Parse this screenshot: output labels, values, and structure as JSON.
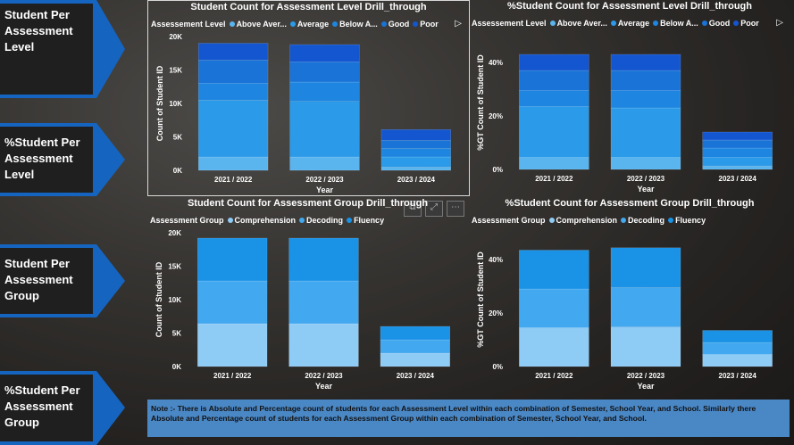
{
  "nav": [
    {
      "label": "Student Per\nAssessment\nLevel"
    },
    {
      "label": "%Student Per\nAssessment\nLevel"
    },
    {
      "label": "Student Per\nAssessment\nGroup"
    },
    {
      "label": "%Student Per\nAssessment\nGroup"
    }
  ],
  "colors": {
    "nav_bg": "#1f1f1f",
    "nav_arrow": "#1565c0",
    "above_average": "#5ab4ee",
    "average": "#2b9ae8",
    "below_average": "#1e86e0",
    "good": "#1a73d6",
    "poor": "#1456cf",
    "comprehension": "#8ecbf5",
    "decoding": "#42a8ef",
    "fluency": "#1a92e6",
    "note_bg": "#4a87c5"
  },
  "panels": {
    "p1": {
      "title": "Student Count for Assessment Level Drill_through",
      "legend_title": "Assessement Level",
      "legend_items": [
        "Above Aver...",
        "Average",
        "Below A...",
        "Good",
        "Poor"
      ],
      "play_icon": "▷"
    },
    "p2": {
      "title": "%Student Count for Assessment Level Drill_through",
      "legend_title": "Assessement Level",
      "legend_items": [
        "Above Aver...",
        "Average",
        "Below A...",
        "Good",
        "Poor"
      ],
      "play_icon": "▷"
    },
    "p3": {
      "title": "Student Count for Assessment Group Drill_through",
      "legend_title": "Assessment Group",
      "legend_items": [
        "Comprehension",
        "Decoding",
        "Fluency"
      ],
      "toolbar": [
        "⧉",
        "⤢",
        "⋯"
      ]
    },
    "p4": {
      "title": "%Student Count for Assessment Group Drill_through",
      "legend_title": "Assessment Group",
      "legend_items": [
        "Comprehension",
        "Decoding",
        "Fluency"
      ]
    }
  },
  "chart_data": [
    {
      "type": "bar",
      "title": "Student Count for Assessment Level Drill_through",
      "categories": [
        "2021 / 2022",
        "2022 / 2023",
        "2023 / 2024"
      ],
      "xlabel": "Year",
      "ylabel": "Count of Student ID",
      "ylim": [
        0,
        20000
      ],
      "yticks": [
        "0K",
        "5K",
        "10K",
        "15K",
        "20K"
      ],
      "stacked": true,
      "series": [
        {
          "name": "Above Aver...",
          "values": [
            2000,
            2000,
            500
          ]
        },
        {
          "name": "Average",
          "values": [
            8500,
            8300,
            1500
          ]
        },
        {
          "name": "Below A...",
          "values": [
            2500,
            2900,
            1300
          ]
        },
        {
          "name": "Good",
          "values": [
            3500,
            3000,
            1200
          ]
        },
        {
          "name": "Poor",
          "values": [
            2500,
            2600,
            1600
          ]
        }
      ]
    },
    {
      "type": "bar",
      "title": "%Student Count for Assessment Level Drill_through",
      "categories": [
        "2021 / 2022",
        "2022 / 2023",
        "2023 / 2024"
      ],
      "xlabel": "Year",
      "ylabel": "%GT Count of Student ID",
      "ylim": [
        0,
        50
      ],
      "yticks": [
        "0%",
        "20%",
        "40%"
      ],
      "stacked": true,
      "series": [
        {
          "name": "Above Aver...",
          "values": [
            4.5,
            4.5,
            1.3
          ]
        },
        {
          "name": "Average",
          "values": [
            19,
            18.5,
            3.2
          ]
        },
        {
          "name": "Below A...",
          "values": [
            6,
            6.5,
            3.5
          ]
        },
        {
          "name": "Good",
          "values": [
            7.5,
            7.5,
            3
          ]
        },
        {
          "name": "Poor",
          "values": [
            6,
            6,
            3
          ]
        }
      ]
    },
    {
      "type": "bar",
      "title": "Student Count for Assessment Group Drill_through",
      "categories": [
        "2021 / 2022",
        "2022 / 2023",
        "2023 / 2024"
      ],
      "xlabel": "Year",
      "ylabel": "Count of Student ID",
      "ylim": [
        0,
        20000
      ],
      "yticks": [
        "0K",
        "5K",
        "10K",
        "15K",
        "20K"
      ],
      "stacked": true,
      "series": [
        {
          "name": "Comprehension",
          "values": [
            6400,
            6400,
            2000
          ]
        },
        {
          "name": "Decoding",
          "values": [
            6400,
            6400,
            2000
          ]
        },
        {
          "name": "Fluency",
          "values": [
            6400,
            6400,
            2000
          ]
        }
      ]
    },
    {
      "type": "bar",
      "title": "%Student Count for Assessment Group Drill_through",
      "categories": [
        "2021 / 2022",
        "2022 / 2023",
        "2023 / 2024"
      ],
      "xlabel": "Year",
      "ylabel": "%GT Count of Student ID",
      "ylim": [
        0,
        50
      ],
      "yticks": [
        "0%",
        "20%",
        "40%"
      ],
      "stacked": true,
      "series": [
        {
          "name": "Comprehension",
          "values": [
            14.5,
            14.8,
            4.5
          ]
        },
        {
          "name": "Decoding",
          "values": [
            14.5,
            14.8,
            4.5
          ]
        },
        {
          "name": "Fluency",
          "values": [
            14.5,
            14.8,
            4.5
          ]
        }
      ]
    }
  ],
  "note": "Note :- There is Absolute and Percentage count of students for each Assessment Level within each combination of Semester, School Year, and School. Similarly there Absolute and Percentage count of students for each Assessment Group within each combination of Semester, School Year, and School."
}
